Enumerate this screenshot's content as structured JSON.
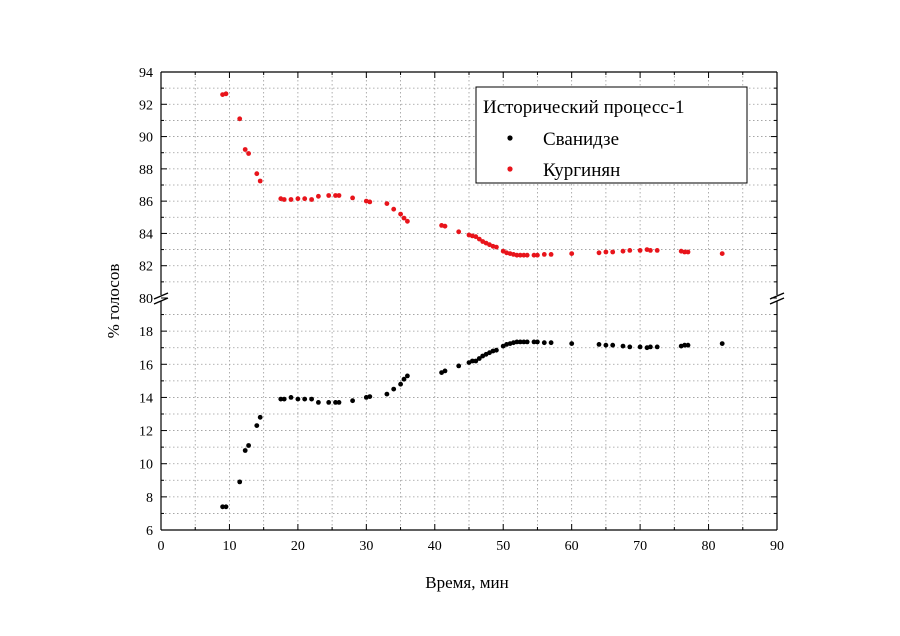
{
  "chart_data": {
    "type": "scatter",
    "xlabel": "Время, мин",
    "ylabel": "% голосов",
    "xlim": [
      0,
      90
    ],
    "x_ticks": [
      0,
      10,
      20,
      30,
      40,
      50,
      60,
      70,
      80,
      90
    ],
    "broken_y_axis": true,
    "ylim_lower": [
      6,
      20
    ],
    "ylim_upper": [
      80,
      94
    ],
    "y_ticks_lower": [
      6,
      8,
      10,
      12,
      14,
      16,
      18
    ],
    "y_ticks_upper": [
      80,
      82,
      84,
      86,
      88,
      90,
      92,
      94
    ],
    "grid": true,
    "legend": {
      "title": "Исторический процесс-1",
      "placement": "top-right"
    },
    "series": [
      {
        "name": "Сванидзе",
        "color": "#000000",
        "points": [
          [
            9,
            7.4
          ],
          [
            9.5,
            7.4
          ],
          [
            11.5,
            8.9
          ],
          [
            12.3,
            10.8
          ],
          [
            12.8,
            11.1
          ],
          [
            14,
            12.3
          ],
          [
            14.5,
            12.8
          ],
          [
            17.5,
            13.9
          ],
          [
            18,
            13.9
          ],
          [
            19,
            14.0
          ],
          [
            20,
            13.9
          ],
          [
            21,
            13.9
          ],
          [
            22,
            13.9
          ],
          [
            23,
            13.7
          ],
          [
            24.5,
            13.7
          ],
          [
            25.5,
            13.7
          ],
          [
            26,
            13.7
          ],
          [
            28,
            13.8
          ],
          [
            30,
            14.0
          ],
          [
            30.5,
            14.05
          ],
          [
            33,
            14.2
          ],
          [
            34,
            14.5
          ],
          [
            35,
            14.8
          ],
          [
            35.5,
            15.1
          ],
          [
            36,
            15.3
          ],
          [
            41,
            15.5
          ],
          [
            41.5,
            15.6
          ],
          [
            43.5,
            15.9
          ],
          [
            45,
            16.1
          ],
          [
            45.5,
            16.2
          ],
          [
            46,
            16.2
          ],
          [
            46.5,
            16.35
          ],
          [
            47,
            16.5
          ],
          [
            47.5,
            16.6
          ],
          [
            48,
            16.7
          ],
          [
            48.5,
            16.8
          ],
          [
            49,
            16.85
          ],
          [
            50,
            17.1
          ],
          [
            50.5,
            17.2
          ],
          [
            51,
            17.25
          ],
          [
            51.5,
            17.3
          ],
          [
            52,
            17.35
          ],
          [
            52.5,
            17.35
          ],
          [
            53,
            17.35
          ],
          [
            53.5,
            17.35
          ],
          [
            54.5,
            17.35
          ],
          [
            55,
            17.35
          ],
          [
            56,
            17.3
          ],
          [
            57,
            17.3
          ],
          [
            60,
            17.25
          ],
          [
            64,
            17.2
          ],
          [
            65,
            17.15
          ],
          [
            66,
            17.15
          ],
          [
            67.5,
            17.1
          ],
          [
            68.5,
            17.05
          ],
          [
            70,
            17.05
          ],
          [
            71,
            17.0
          ],
          [
            71.5,
            17.05
          ],
          [
            72.5,
            17.05
          ],
          [
            76,
            17.1
          ],
          [
            76.5,
            17.15
          ],
          [
            77,
            17.15
          ],
          [
            82,
            17.25
          ]
        ]
      },
      {
        "name": "Кургинян",
        "color": "#e8141b",
        "points": [
          [
            9,
            92.6
          ],
          [
            9.5,
            92.65
          ],
          [
            11.5,
            91.1
          ],
          [
            12.3,
            89.2
          ],
          [
            12.8,
            88.95
          ],
          [
            14,
            87.7
          ],
          [
            14.5,
            87.25
          ],
          [
            17.5,
            86.15
          ],
          [
            18,
            86.1
          ],
          [
            19,
            86.1
          ],
          [
            20,
            86.15
          ],
          [
            21,
            86.15
          ],
          [
            22,
            86.1
          ],
          [
            23,
            86.3
          ],
          [
            24.5,
            86.35
          ],
          [
            25.5,
            86.35
          ],
          [
            26,
            86.35
          ],
          [
            28,
            86.2
          ],
          [
            30,
            86.0
          ],
          [
            30.5,
            85.95
          ],
          [
            33,
            85.85
          ],
          [
            34,
            85.5
          ],
          [
            35,
            85.2
          ],
          [
            35.5,
            84.95
          ],
          [
            36,
            84.75
          ],
          [
            41,
            84.5
          ],
          [
            41.5,
            84.45
          ],
          [
            43.5,
            84.1
          ],
          [
            45,
            83.9
          ],
          [
            45.5,
            83.85
          ],
          [
            46,
            83.8
          ],
          [
            46.5,
            83.65
          ],
          [
            47,
            83.5
          ],
          [
            47.5,
            83.4
          ],
          [
            48,
            83.3
          ],
          [
            48.5,
            83.2
          ],
          [
            49,
            83.15
          ],
          [
            50,
            82.9
          ],
          [
            50.5,
            82.8
          ],
          [
            51,
            82.75
          ],
          [
            51.5,
            82.7
          ],
          [
            52,
            82.65
          ],
          [
            52.5,
            82.65
          ],
          [
            53,
            82.65
          ],
          [
            53.5,
            82.65
          ],
          [
            54.5,
            82.65
          ],
          [
            55,
            82.65
          ],
          [
            56,
            82.7
          ],
          [
            57,
            82.7
          ],
          [
            60,
            82.75
          ],
          [
            64,
            82.8
          ],
          [
            65,
            82.85
          ],
          [
            66,
            82.85
          ],
          [
            67.5,
            82.9
          ],
          [
            68.5,
            82.95
          ],
          [
            70,
            82.95
          ],
          [
            71,
            83.0
          ],
          [
            71.5,
            82.95
          ],
          [
            72.5,
            82.95
          ],
          [
            76,
            82.9
          ],
          [
            76.5,
            82.85
          ],
          [
            77,
            82.85
          ],
          [
            82,
            82.75
          ]
        ]
      }
    ]
  }
}
